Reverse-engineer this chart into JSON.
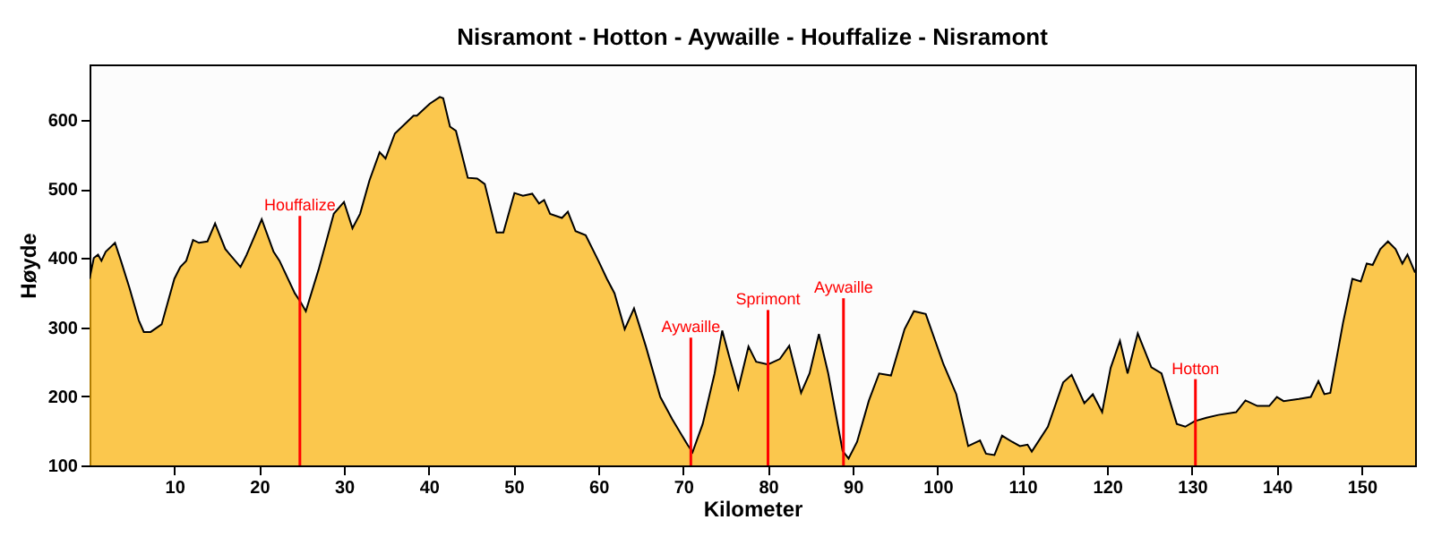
{
  "chart_data": {
    "type": "area",
    "title": "Nisramont - Hotton - Aywaille - Houffalize - Nisramont",
    "xlabel": "Kilometer",
    "ylabel": "Høyde",
    "xlim": [
      0,
      156.3
    ],
    "ylim": [
      100,
      680
    ],
    "xticks": [
      10,
      20,
      30,
      40,
      50,
      60,
      70,
      80,
      90,
      100,
      110,
      120,
      130,
      140,
      150
    ],
    "yticks": [
      100,
      200,
      300,
      400,
      500,
      600
    ],
    "grid": false,
    "series": [
      {
        "color": "#fbb003",
        "x": [
          0,
          0.5,
          1.0,
          1.4,
          1.9,
          3.0,
          3.7,
          4.7,
          5.8,
          6.4,
          7.2,
          8.5,
          10.0,
          10.7,
          11.4,
          12.2,
          12.9,
          13.9,
          14.8,
          16.0,
          17.8,
          18.5,
          20.3,
          21.7,
          22.4,
          24.2,
          24.9,
          25.5,
          27.0,
          28.8,
          30.0,
          31.0,
          31.9,
          33.0,
          34.2,
          34.9,
          36.0,
          38.2,
          38.6,
          40.1,
          41.3,
          41.7,
          42.5,
          43.2,
          44.6,
          45.7,
          46.6,
          48.0,
          48.8,
          50.1,
          51.1,
          52.2,
          53.0,
          53.6,
          54.3,
          55.7,
          56.4,
          57.3,
          58.5,
          60.0,
          61.0,
          61.9,
          63.1,
          64.2,
          65.6,
          67.3,
          68.7,
          70.5,
          71.1,
          72.3,
          73.7,
          74.6,
          75.5,
          76.5,
          77.7,
          78.6,
          80.0,
          81.4,
          82.5,
          83.9,
          84.9,
          86.0,
          87.1,
          88.8,
          89.5,
          90.5,
          91.9,
          93.1,
          94.5,
          96.1,
          97.2,
          98.6,
          100.7,
          102.2,
          103.6,
          105.0,
          105.7,
          106.7,
          107.6,
          108.8,
          109.7,
          110.6,
          111.1,
          113.0,
          114.8,
          115.8,
          117.3,
          118.3,
          119.4,
          120.4,
          121.5,
          122.4,
          123.6,
          125.2,
          126.4,
          128.2,
          129.2,
          130.3,
          131.7,
          133.1,
          135.2,
          136.3,
          137.7,
          139.1,
          140.0,
          140.8,
          142.6,
          144.0,
          144.9,
          145.6,
          146.3,
          147.8,
          148.9,
          149.9,
          150.6,
          151.3,
          152.2,
          153.1,
          154.0,
          154.8,
          155.4,
          156.3
        ],
        "values": [
          370,
          400,
          405,
          396,
          409,
          422,
          396,
          357,
          310,
          293,
          293,
          304,
          370,
          387,
          396,
          426,
          422,
          424,
          450,
          413,
          387,
          404,
          456,
          409,
          396,
          349,
          336,
          323,
          383,
          464,
          481,
          443,
          464,
          512,
          553,
          544,
          580,
          606,
          606,
          623,
          633,
          631,
          590,
          584,
          516,
          515,
          507,
          437,
          437,
          494,
          490,
          493,
          479,
          484,
          464,
          458,
          467,
          439,
          433,
          396,
          370,
          349,
          297,
          327,
          272,
          199,
          167,
          130,
          119,
          160,
          233,
          295,
          254,
          211,
          272,
          250,
          246,
          254,
          273,
          205,
          233,
          290,
          233,
          121,
          110,
          134,
          194,
          233,
          230,
          297,
          323,
          319,
          246,
          203,
          128,
          136,
          117,
          115,
          143,
          134,
          128,
          130,
          120,
          156,
          220,
          231,
          190,
          203,
          177,
          241,
          280,
          233,
          291,
          242,
          233,
          160,
          156,
          164,
          169,
          173,
          177,
          194,
          186,
          186,
          199,
          193,
          196,
          199,
          222,
          203,
          205,
          306,
          370,
          366,
          392,
          390,
          413,
          424,
          413,
          392,
          405,
          379
        ]
      }
    ],
    "ref_lines": [
      {
        "axis": "x",
        "value": 24.8,
        "label": "Houffalize",
        "color": "#ff0000"
      },
      {
        "axis": "x",
        "value": 70.9,
        "label": "Aywaille",
        "color": "#ff0000"
      },
      {
        "axis": "x",
        "value": 80.0,
        "label": "Sprimont",
        "color": "#ff0000"
      },
      {
        "axis": "x",
        "value": 88.9,
        "label": "Aywaille",
        "color": "#ff0000"
      },
      {
        "axis": "x",
        "value": 130.4,
        "label": "Hotton",
        "color": "#ff0000"
      }
    ]
  }
}
